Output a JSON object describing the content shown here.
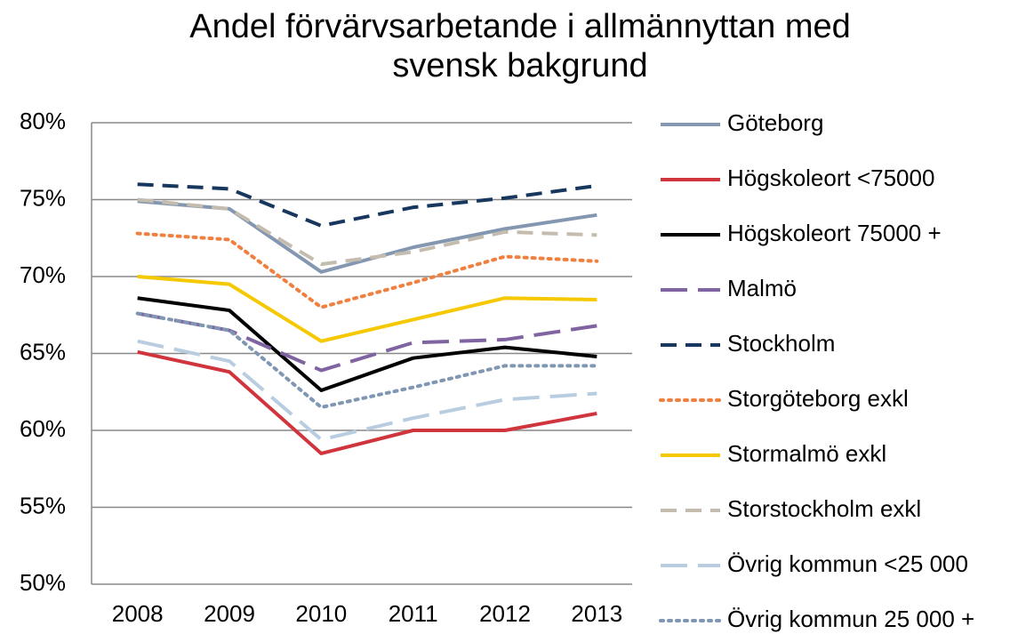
{
  "chart_data": {
    "type": "line",
    "title": "Andel förvärvsarbetande i allmännyttan med svensk bakgrund",
    "categories": [
      "2008",
      "2009",
      "2010",
      "2011",
      "2012",
      "2013"
    ],
    "ylim": [
      50,
      80
    ],
    "yticks": [
      {
        "value": 50,
        "label": "50%"
      },
      {
        "value": 55,
        "label": "55%"
      },
      {
        "value": 60,
        "label": "60%"
      },
      {
        "value": 65,
        "label": "65%"
      },
      {
        "value": 70,
        "label": "70%"
      },
      {
        "value": 75,
        "label": "75%"
      },
      {
        "value": 80,
        "label": "80%"
      }
    ],
    "grid": true,
    "legend": "right",
    "series": [
      {
        "name": "Göteborg",
        "color": "#8497b0",
        "dash": "solid",
        "values": [
          74.9,
          74.4,
          70.3,
          71.9,
          73.1,
          74.0
        ]
      },
      {
        "name": "Högskoleort <75000",
        "color": "#d0343d",
        "dash": "solid",
        "values": [
          65.1,
          63.8,
          58.5,
          60.0,
          60.0,
          61.1
        ]
      },
      {
        "name": "Högskoleort 75000 +",
        "color": "#000000",
        "dash": "solid",
        "values": [
          68.6,
          67.8,
          62.6,
          64.7,
          65.4,
          64.8
        ]
      },
      {
        "name": "Malmö",
        "color": "#8064a2",
        "dash": "longdash",
        "values": [
          67.6,
          66.5,
          63.9,
          65.7,
          65.9,
          66.8
        ]
      },
      {
        "name": "Stockholm",
        "color": "#17375e",
        "dash": "dash",
        "values": [
          76.0,
          75.7,
          73.3,
          74.5,
          75.1,
          75.9
        ]
      },
      {
        "name": "Storgöteborg exkl",
        "color": "#f08040",
        "dash": "dot",
        "values": [
          72.8,
          72.4,
          68.0,
          69.6,
          71.3,
          71.0
        ]
      },
      {
        "name": "Stormalmö exkl",
        "color": "#f5c800",
        "dash": "solid",
        "values": [
          70.0,
          69.5,
          65.8,
          67.2,
          68.6,
          68.5
        ]
      },
      {
        "name": "Storstockholm exkl",
        "color": "#c4bcaf",
        "dash": "dash",
        "values": [
          75.0,
          74.4,
          70.8,
          71.6,
          72.9,
          72.7
        ]
      },
      {
        "name": "Övrig kommun <25 000",
        "color": "#b9cde0",
        "dash": "longdash",
        "values": [
          65.8,
          64.5,
          59.4,
          60.8,
          62.0,
          62.4
        ]
      },
      {
        "name": "Övrig kommun 25 000 +",
        "color": "#7f97b2",
        "dash": "dot",
        "values": [
          67.6,
          66.5,
          61.5,
          62.8,
          64.2,
          64.2
        ]
      }
    ]
  }
}
